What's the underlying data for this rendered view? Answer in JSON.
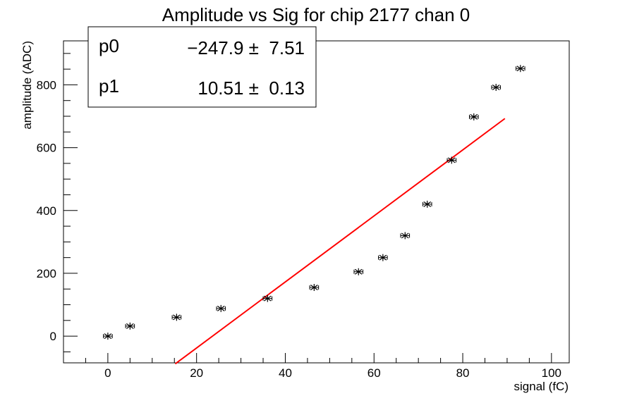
{
  "chart_data": {
    "type": "scatter",
    "title": "Amplitude vs Sig for chip 2177 chan 0",
    "xlabel": "signal (fC)",
    "ylabel": "amplitude (ADC)",
    "xlim": [
      -10,
      104
    ],
    "ylim": [
      -85,
      940
    ],
    "x_ticks": [
      0,
      20,
      40,
      60,
      80,
      100
    ],
    "y_ticks": [
      0,
      200,
      400,
      600,
      800
    ],
    "grid": false,
    "series": [
      {
        "marker": "star",
        "color": "#000000",
        "x": [
          0,
          5,
          15.5,
          25.5,
          36,
          46.5,
          56.5,
          62,
          67,
          72,
          77.5,
          82.5,
          87.5,
          93
        ],
        "y": [
          0,
          32,
          60,
          88,
          120,
          155,
          205,
          250,
          320,
          420,
          560,
          698,
          792,
          852
        ],
        "x_err": [
          1.0,
          1.0,
          1.0,
          1.0,
          1.0,
          1.0,
          1.0,
          1.0,
          1.0,
          1.0,
          1.0,
          1.0,
          1.0,
          1.0
        ]
      }
    ],
    "fit": {
      "color": "#ff0000",
      "p0": -247.9,
      "p1": 10.51,
      "x_range": [
        15.2,
        89.5
      ]
    },
    "stats_box": {
      "position": "top-left",
      "rows": [
        {
          "name": "p0",
          "value": "−247.9 ±  7.51"
        },
        {
          "name": "p1",
          "value": "10.51 ±  0.13"
        }
      ]
    }
  }
}
